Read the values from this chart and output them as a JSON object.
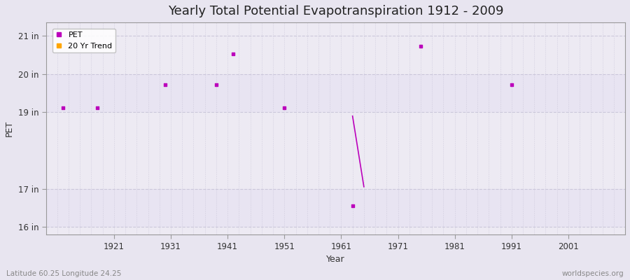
{
  "title": "Yearly Total Potential Evapotranspiration 1912 - 2009",
  "xlabel": "Year",
  "ylabel": "PET",
  "background_color": "#e8e5f0",
  "plot_bg_color": "#edeaf3",
  "grid_color": "#c8c4d8",
  "scatter_color": "#bb00bb",
  "trend_color": "#FFA500",
  "xlim": [
    1909,
    2011
  ],
  "ylim": [
    15.8,
    21.35
  ],
  "yticks": [
    16,
    17,
    19,
    20,
    21
  ],
  "ytick_labels": [
    "16 in",
    "17 in",
    "19 in",
    "20 in",
    "21 in"
  ],
  "xticks": [
    1921,
    1931,
    1941,
    1951,
    1961,
    1971,
    1981,
    1991,
    2001
  ],
  "scatter_x": [
    1912,
    1918,
    1930,
    1939,
    1942,
    1951,
    1963,
    1975,
    1991
  ],
  "scatter_y": [
    19.12,
    19.12,
    19.72,
    19.72,
    20.52,
    19.12,
    16.55,
    20.72,
    19.72
  ],
  "line_x": [
    1963,
    1965
  ],
  "line_y": [
    18.9,
    17.05
  ],
  "footer_left": "Latitude 60.25 Longitude 24.25",
  "footer_right": "worldspecies.org",
  "title_fontsize": 13,
  "tick_fontsize": 8.5,
  "label_fontsize": 9
}
